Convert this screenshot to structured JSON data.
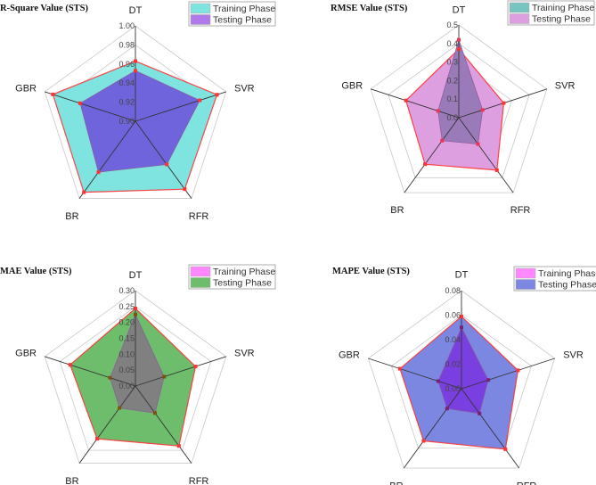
{
  "chart_data": [
    {
      "type": "radar",
      "title": "R-Square Value (STS)",
      "axes": [
        "DT",
        "SVR",
        "RFR",
        "BR",
        "GBR"
      ],
      "range": [
        0.9,
        1.0
      ],
      "ticks": [
        "0.90",
        "0.92",
        "0.94",
        "0.96",
        "0.98",
        "1.00"
      ],
      "legend_position": "top-right",
      "series": [
        {
          "name": "Training Phase",
          "values": [
            0.963,
            0.99,
            0.988,
            0.992,
            0.991
          ],
          "legend_color": "#7fe3e0",
          "fill": "#7fe3e0",
          "marker": "#ff3333"
        },
        {
          "name": "Testing Phase",
          "values": [
            0.953,
            0.971,
            0.956,
            0.966,
            0.961
          ],
          "legend_color": "#b07be8",
          "fill": "#7064dc",
          "marker": "#ff3333"
        }
      ]
    },
    {
      "type": "radar",
      "title": "RMSE Value (STS)",
      "axes": [
        "DT",
        "SVR",
        "RFR",
        "BR",
        "GBR"
      ],
      "range": [
        0.0,
        0.5
      ],
      "ticks": [
        "0.0",
        "0.1",
        "0.2",
        "0.3",
        "0.4",
        "0.5"
      ],
      "legend_position": "top-right",
      "series": [
        {
          "name": "Testing Phase",
          "values": [
            0.37,
            0.255,
            0.35,
            0.31,
            0.3
          ],
          "legend_color": "#dd9fe0",
          "fill": "#dd9fe0",
          "marker": "#ff3333"
        },
        {
          "name": "Training Phase",
          "values": [
            0.42,
            0.135,
            0.176,
            0.153,
            0.118
          ],
          "legend_color": "#78c4c0",
          "fill": "#9a7ab8",
          "marker": "#ee3355"
        }
      ]
    },
    {
      "type": "radar",
      "title": "MAE Value (STS)",
      "axes": [
        "DT",
        "SVR",
        "RFR",
        "BR",
        "GBR"
      ],
      "range": [
        0.0,
        0.3
      ],
      "ticks": [
        "0.00",
        "0.05",
        "0.10",
        "0.15",
        "0.20",
        "0.25",
        "0.30"
      ],
      "legend_position": "top-right",
      "series": [
        {
          "name": "Testing Phase",
          "values": [
            0.244,
            0.199,
            0.233,
            0.205,
            0.216
          ],
          "legend_color": "#6dbd6d",
          "fill": "#6dbd6d",
          "marker": "#ff3333"
        },
        {
          "name": "Training Phase",
          "values": [
            0.225,
            0.095,
            0.105,
            0.085,
            0.084
          ],
          "legend_color": "#ff88ff",
          "fill": "#808080",
          "marker": "#7a5510"
        }
      ]
    },
    {
      "type": "radar",
      "title": "MAPE Value (STS)",
      "axes": [
        "DT",
        "SVR",
        "RFR",
        "BR",
        "GBR"
      ],
      "range": [
        0.0,
        0.08
      ],
      "ticks": [
        "0.00",
        "0.02",
        "0.04",
        "0.06",
        "0.08"
      ],
      "legend_position": "top-right",
      "series": [
        {
          "name": "Testing Phase",
          "values": [
            0.059,
            0.0485,
            0.061,
            0.0526,
            0.0528
          ],
          "legend_color": "#7b87e0",
          "fill": "#7b87e0",
          "marker": "#ff3333"
        },
        {
          "name": "Training Phase",
          "values": [
            0.05,
            0.023,
            0.025,
            0.02,
            0.02
          ],
          "legend_color": "#ff88ff",
          "fill": "#7a3fe0",
          "marker": "#772277"
        }
      ]
    }
  ]
}
